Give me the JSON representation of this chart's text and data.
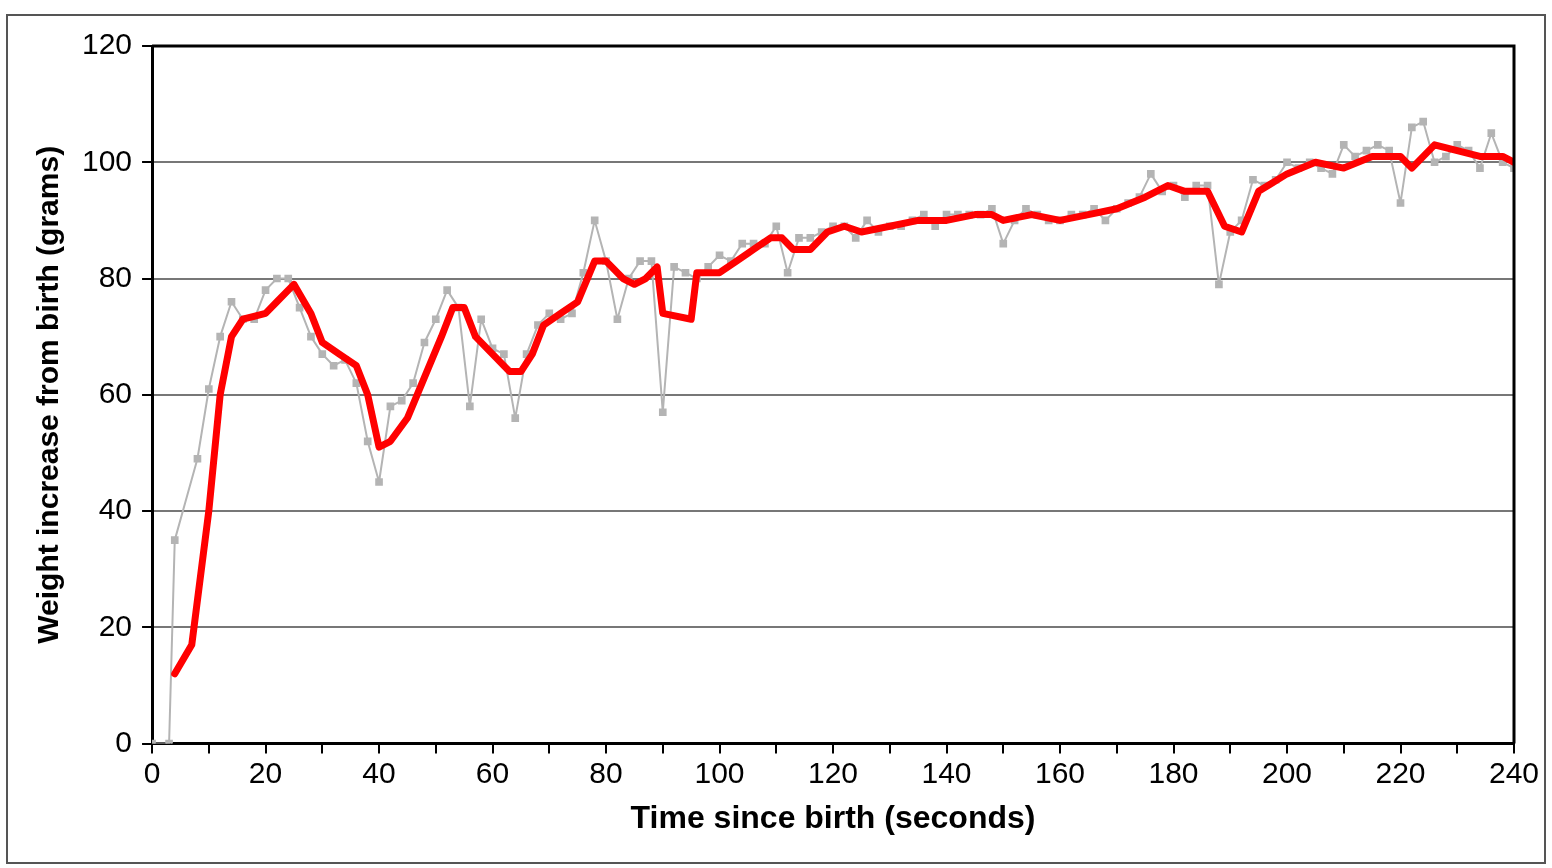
{
  "chart_data": {
    "type": "line",
    "xlabel": "Time since birth (seconds)",
    "ylabel": "Weight increase from birth (grams)",
    "xlim": [
      0,
      240
    ],
    "ylim": [
      0,
      120
    ],
    "xticks": [
      0,
      {
        "value": 10,
        "label": null
      },
      20,
      {
        "value": 30,
        "label": null
      },
      40,
      {
        "value": 50,
        "label": null
      },
      60,
      {
        "value": 70,
        "label": null
      },
      80,
      {
        "value": 90,
        "label": null
      },
      100,
      {
        "value": 110,
        "label": null
      },
      120,
      {
        "value": 130,
        "label": null
      },
      140,
      {
        "value": 150,
        "label": null
      },
      160,
      {
        "value": 170,
        "label": null
      },
      180,
      {
        "value": 190,
        "label": null
      },
      200,
      {
        "value": 210,
        "label": null
      },
      220,
      {
        "value": 230,
        "label": null
      },
      240
    ],
    "yticks": [
      0,
      20,
      40,
      60,
      80,
      100,
      120
    ],
    "grid": "y",
    "legend": false,
    "marker": "square",
    "series": [
      {
        "color": "#b4b4b4",
        "x": [
          0,
          3,
          4,
          8,
          10,
          12,
          14,
          16,
          18,
          20,
          22,
          24,
          26,
          28,
          30,
          32,
          34,
          36,
          38,
          40,
          42,
          44,
          46,
          48,
          50,
          52,
          54,
          56,
          58,
          60,
          62,
          64,
          66,
          68,
          70,
          72,
          74,
          76,
          78,
          80,
          82,
          84,
          86,
          88,
          90,
          92,
          94,
          96,
          98,
          100,
          102,
          104,
          106,
          108,
          110,
          112,
          114,
          116,
          118,
          120,
          122,
          124,
          126,
          128,
          130,
          132,
          134,
          136,
          138,
          140,
          142,
          144,
          146,
          148,
          150,
          152,
          154,
          156,
          158,
          160,
          162,
          164,
          166,
          168,
          170,
          172,
          174,
          176,
          178,
          180,
          182,
          184,
          186,
          188,
          190,
          192,
          194,
          196,
          198,
          200,
          202,
          204,
          206,
          208,
          210,
          212,
          214,
          216,
          218,
          220,
          222,
          224,
          226,
          228,
          230,
          232,
          234,
          236,
          238,
          240
        ],
        "values": [
          0,
          0,
          35,
          49,
          61,
          70,
          76,
          73,
          73,
          78,
          80,
          80,
          75,
          70,
          67,
          65,
          66,
          62,
          52,
          45,
          58,
          59,
          62,
          69,
          73,
          78,
          75,
          58,
          73,
          68,
          67,
          56,
          67,
          72,
          74,
          73,
          74,
          81,
          90,
          83,
          73,
          80,
          83,
          83,
          57,
          82,
          81,
          80,
          82,
          84,
          83,
          86,
          86,
          86,
          89,
          81,
          87,
          87,
          88,
          89,
          89,
          87,
          90,
          88,
          89,
          89,
          90,
          91,
          89,
          91,
          91,
          91,
          91,
          92,
          86,
          90,
          92,
          91,
          90,
          90,
          91,
          91,
          92,
          90,
          92,
          93,
          94,
          98,
          95,
          96,
          94,
          96,
          96,
          79,
          88,
          90,
          97,
          96,
          97,
          100,
          99,
          100,
          99,
          98,
          103,
          101,
          102,
          103,
          102,
          93,
          106,
          107,
          100,
          101,
          103,
          102,
          99,
          105,
          100,
          99
        ]
      },
      {
        "color": "#ff0000",
        "marker": "none",
        "x": [
          4,
          7,
          10,
          12,
          14,
          16,
          20,
          22,
          25,
          28,
          30,
          33,
          36,
          38,
          40,
          42,
          45,
          48,
          51,
          53,
          55,
          57,
          60,
          63,
          65,
          67,
          69,
          72,
          75,
          78,
          80,
          83,
          85,
          87,
          89,
          90,
          95,
          96,
          100,
          103,
          106,
          109,
          111,
          113,
          116,
          119,
          122,
          125,
          130,
          135,
          140,
          145,
          148,
          150,
          155,
          160,
          165,
          170,
          175,
          179,
          182,
          186,
          189,
          192,
          195,
          200,
          205,
          210,
          215,
          220,
          222,
          226,
          230,
          234,
          238,
          240
        ],
        "values": [
          12,
          17,
          40,
          60,
          70,
          73,
          74,
          76,
          79,
          74,
          69,
          67,
          65,
          60,
          51,
          52,
          56,
          63,
          70,
          75,
          75,
          70,
          67,
          64,
          64,
          67,
          72,
          74,
          76,
          83,
          83,
          80,
          79,
          80,
          82,
          74,
          73,
          81,
          81,
          83,
          85,
          87,
          87,
          85,
          85,
          88,
          89,
          88,
          89,
          90,
          90,
          91,
          91,
          90,
          91,
          90,
          91,
          92,
          94,
          96,
          95,
          95,
          89,
          88,
          95,
          98,
          100,
          99,
          101,
          101,
          99,
          103,
          102,
          101,
          101,
          100
        ]
      }
    ]
  }
}
